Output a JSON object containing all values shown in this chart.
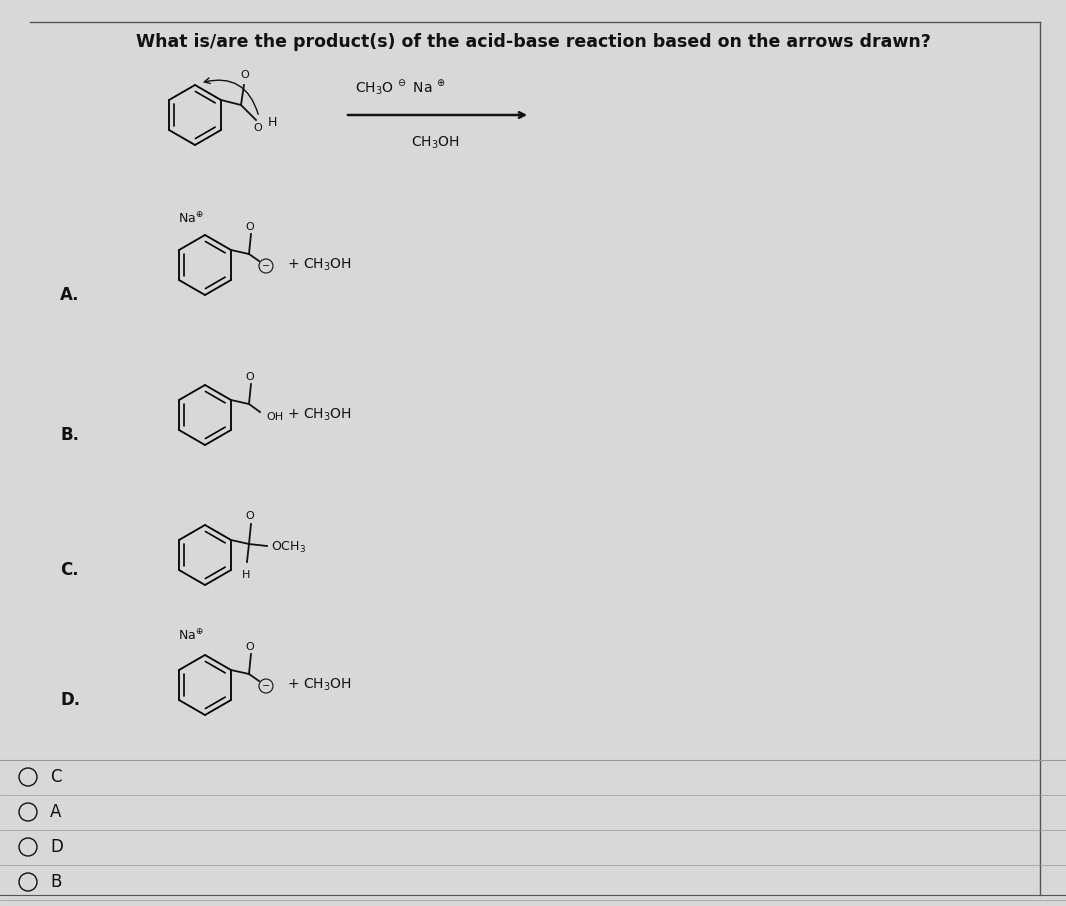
{
  "title": "What is/are the product(s) of the acid-base reaction based on the arrows drawn?",
  "title_fontsize": 12.5,
  "bg_color": "#d8d8d8",
  "text_color": "#111111",
  "line_color": "#111111",
  "separator_color": "#999999",
  "answer_letters": [
    "C",
    "A",
    "D",
    "B"
  ]
}
